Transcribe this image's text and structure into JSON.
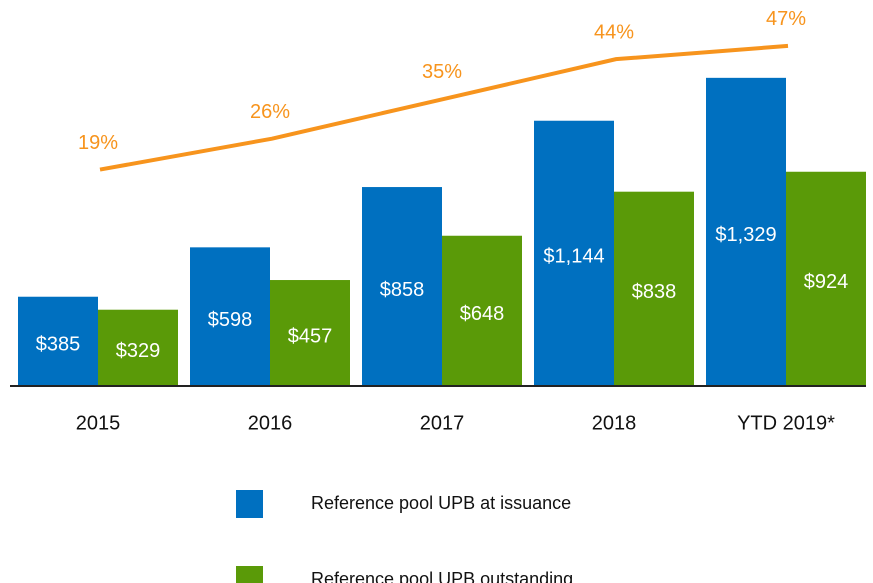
{
  "chart_data": {
    "type": "bar",
    "categories": [
      "2015",
      "2016",
      "2017",
      "2018",
      "YTD 2019*"
    ],
    "series": [
      {
        "name": "Reference pool UPB at issuance",
        "color": "#0070c0",
        "values": [
          385,
          598,
          858,
          1144,
          1329
        ],
        "value_labels": [
          "$385",
          "$598",
          "$858",
          "$1,144",
          "$1,329"
        ]
      },
      {
        "name": "Reference pool UPB outstanding",
        "color": "#5a9a08",
        "values": [
          329,
          457,
          648,
          838,
          924
        ],
        "value_labels": [
          "$329",
          "$457",
          "$648",
          "$838",
          "$924"
        ]
      },
      {
        "type": "line",
        "axis": "y2",
        "color": "#f7941d",
        "values": [
          19,
          26,
          35,
          44,
          47
        ],
        "value_labels": [
          "19%",
          "26%",
          "35%",
          "44%",
          "47%"
        ]
      }
    ],
    "ylim": [
      0,
      1600
    ],
    "y2lim": [
      -30,
      54
    ]
  }
}
